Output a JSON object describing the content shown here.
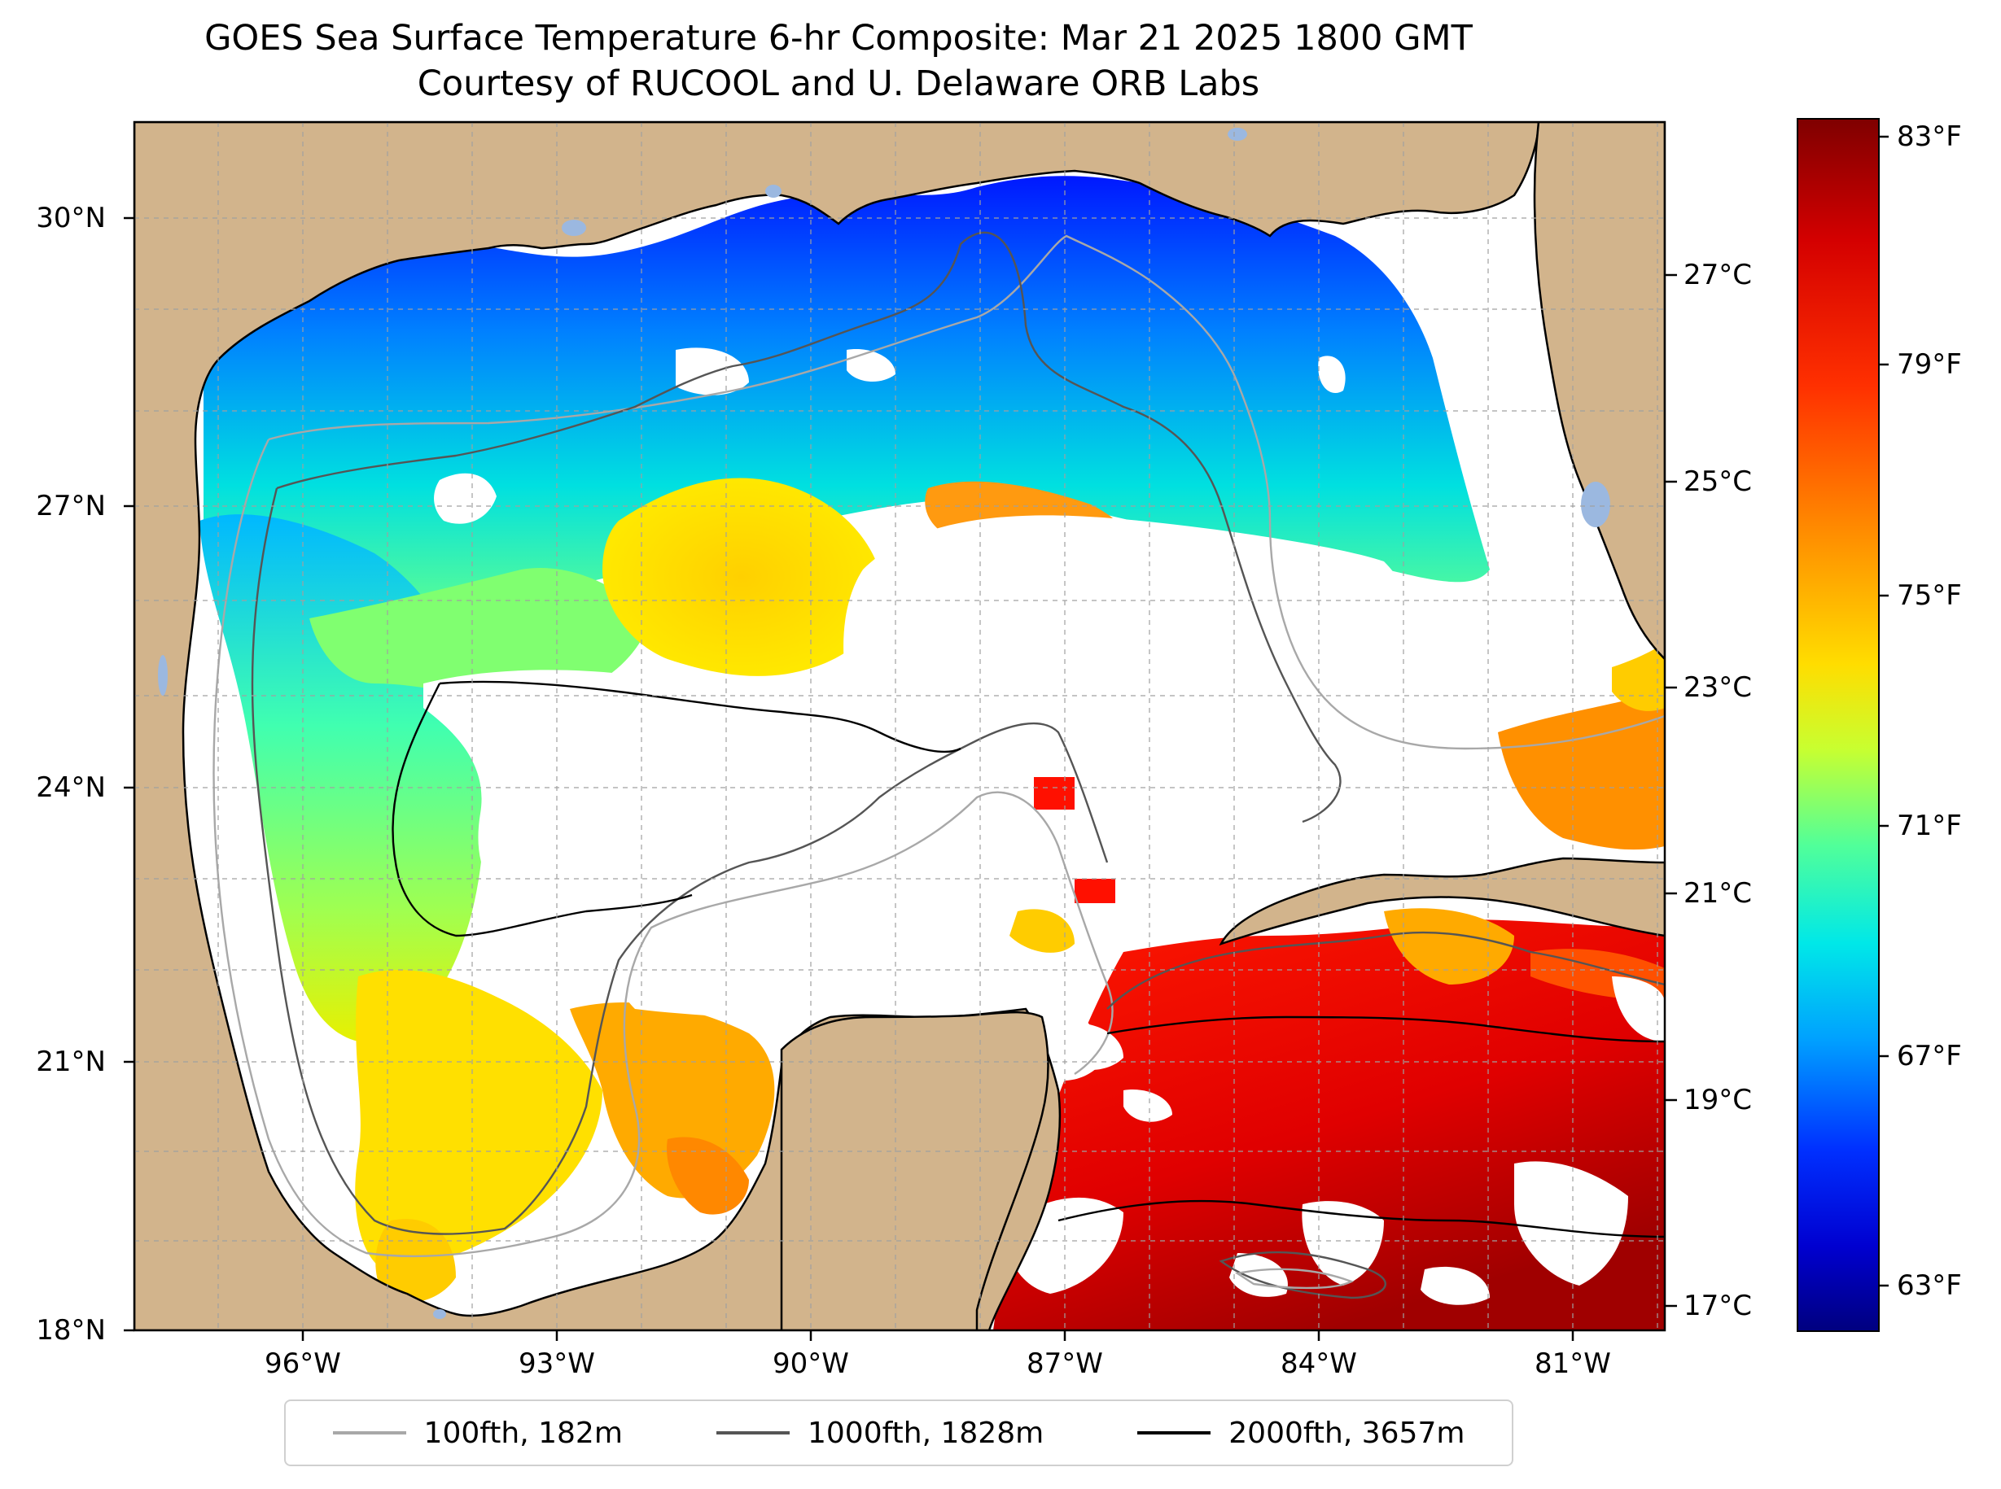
{
  "title": {
    "line1": "GOES Sea Surface Temperature 6-hr Composite: Mar 21 2025 1800 GMT",
    "line2": "Courtesy of RUCOOL and U. Delaware ORB Labs"
  },
  "axes": {
    "lat_labels": [
      "30°N",
      "27°N",
      "24°N",
      "21°N",
      "18°N"
    ],
    "lon_labels": [
      "96°W",
      "93°W",
      "90°W",
      "87°W",
      "84°W",
      "81°W"
    ]
  },
  "colorbar": {
    "fahrenheit_labels": [
      "83°F",
      "79°F",
      "75°F",
      "71°F",
      "67°F",
      "63°F"
    ],
    "celsius_labels": [
      "27°C",
      "25°C",
      "23°C",
      "21°C",
      "19°C",
      "17°C"
    ],
    "colors": [
      "#7f0000",
      "#ff2200",
      "#ff8800",
      "#ffee00",
      "#7fff7f",
      "#00d4ff",
      "#0060ff",
      "#0000c8",
      "#00007f"
    ]
  },
  "legend": {
    "items": [
      {
        "label": "100fth, 182m",
        "color": "#a8a8a8"
      },
      {
        "label": "1000fth, 1828m",
        "color": "#555555"
      },
      {
        "label": "2000fth, 3657m",
        "color": "#000000"
      }
    ]
  },
  "map_colors": {
    "land": "#d2b48c",
    "lakes": "#9bb8e0",
    "no_data": "#ffffff"
  }
}
